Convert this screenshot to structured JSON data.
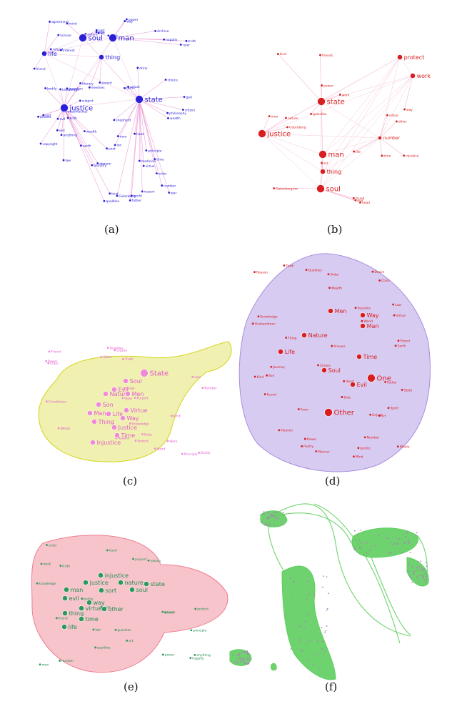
{
  "figure": {
    "caption": "Figure: semantic networks of the word co-occurrence graph for The Republic (panels a–f)."
  },
  "panels": [
    {
      "id": "a",
      "label": "(a)",
      "edge_color": "#e98fd2",
      "node_color": "#2b20d8",
      "text_color": "#2b20d8",
      "hubs": [
        {
          "label": "soul",
          "size": "large"
        },
        {
          "label": "man",
          "size": "large"
        },
        {
          "label": "life",
          "size": "medium"
        },
        {
          "label": "thing",
          "size": "medium"
        },
        {
          "label": "justice",
          "size": "large"
        },
        {
          "label": "state",
          "size": "large"
        }
      ],
      "words": [
        "father",
        "ion",
        "choice",
        "beautify",
        "mind",
        "shepherd",
        "poet",
        "wealth",
        "philosophy",
        "god",
        "unjust",
        "world",
        "rest",
        "earth",
        "subject",
        "ruler",
        "medicine",
        "enemies",
        "interest",
        "art",
        "principle",
        "knowledge",
        "friend",
        "bodily",
        "evil",
        "qualities",
        "nature",
        "time",
        "way",
        "men",
        "evil",
        "virtue",
        "sort",
        "truth",
        "reason",
        "kind",
        "hand",
        "power",
        "Thrasymachus",
        "number",
        "citizen",
        "guardian",
        "order",
        "drink",
        "wealth",
        "war",
        "work",
        "protect",
        "law",
        "term",
        "agreement",
        "literary",
        "Gutenberg",
        "Archive",
        "domain",
        "refund",
        "copyright",
        "license",
        "anything",
        "happily",
        "part",
        "birth",
        "parent"
      ]
    },
    {
      "id": "b",
      "label": "(b)",
      "edge_color": "#f0a4c8",
      "node_color": "#d81e1e",
      "text_color": "#d81e1e",
      "hubs": [
        {
          "label": "state",
          "size": "large"
        },
        {
          "label": "protect",
          "size": "medium"
        },
        {
          "label": "work",
          "size": "medium"
        },
        {
          "label": "justice",
          "size": "large"
        },
        {
          "label": "man",
          "size": "large"
        },
        {
          "label": "thing",
          "size": "medium"
        },
        {
          "label": "soul",
          "size": "large"
        },
        {
          "label": "number",
          "size": "small"
        }
      ],
      "words": [
        "found",
        "Gutenberg",
        "Gutenberg-tm",
        "work",
        "guardian",
        "power",
        "head",
        "other",
        "life",
        "injustice",
        "time",
        "nature",
        "friends",
        "art",
        "evil",
        "kind",
        "virtue",
        "way",
        "men"
      ]
    },
    {
      "id": "c",
      "label": "(c)",
      "edge_color": "#d4d41c",
      "node_color": "#f08ad8",
      "text_color": "#e25bd0",
      "hubs": [
        {
          "label": "State",
          "size": "large"
        },
        {
          "label": "Soul",
          "size": "medium"
        },
        {
          "label": "Evil",
          "size": "medium"
        },
        {
          "label": "Nature",
          "size": "medium"
        },
        {
          "label": "Men",
          "size": "medium"
        },
        {
          "label": "Son",
          "size": "medium"
        },
        {
          "label": "Man",
          "size": "medium"
        },
        {
          "label": "Life",
          "size": "medium"
        },
        {
          "label": "Way",
          "size": "medium"
        },
        {
          "label": "Thing",
          "size": "medium"
        },
        {
          "label": "Virtue",
          "size": "medium"
        },
        {
          "label": "Justice",
          "size": "medium"
        },
        {
          "label": "Time",
          "size": "medium"
        },
        {
          "label": "Injustice",
          "size": "medium"
        }
      ],
      "words": [
        "Hand",
        "Number",
        "View",
        "Work",
        "Protect",
        "Qualities",
        "Law",
        "Order",
        "Reason",
        "Bodily",
        "Friend",
        "Principle",
        "Truth",
        "Ruler",
        "Constitutes",
        "Citizen",
        "Class",
        "Purport",
        "Whole",
        "Kind",
        "Knowledge",
        "Other",
        "Power"
      ]
    },
    {
      "id": "d",
      "label": "(d)",
      "edge_color": "#a98ce0",
      "node_color": "#d81e1e",
      "text_color": "#d81e1e",
      "hubs": [
        {
          "label": "Men",
          "size": "medium"
        },
        {
          "label": "Way",
          "size": "medium"
        },
        {
          "label": "Man",
          "size": "medium"
        },
        {
          "label": "Nature",
          "size": "medium"
        },
        {
          "label": "Life",
          "size": "medium"
        },
        {
          "label": "Time",
          "size": "medium"
        },
        {
          "label": "Soul",
          "size": "medium"
        },
        {
          "label": "One",
          "size": "large"
        },
        {
          "label": "Evil",
          "size": "medium"
        },
        {
          "label": "Other",
          "size": "large"
        }
      ],
      "words": [
        "Justice",
        "Injustice",
        "Desire",
        "Earth",
        "World",
        "Form",
        "Son",
        "Knowledge",
        "Truth",
        "Virtue",
        "Thing",
        "Choice",
        "Wealth",
        "Number",
        "Qualities",
        "Mind",
        "Heaven",
        "Journey",
        "Reason",
        "Whole",
        "Law",
        "Manner",
        "Order",
        "Unjust",
        "Friend",
        "Father",
        "State",
        "Spirit",
        "Answer",
        "Found",
        "Head",
        "Side",
        "Kind",
        "Class",
        "Power",
        "Poetry",
        "Husbandman",
        "Art"
      ]
    },
    {
      "id": "e",
      "label": "(e)",
      "edge_color": "#ee7d8e",
      "node_color": "#2a9a5a",
      "text_color": "#238c51",
      "hubs": [
        {
          "label": "injustice",
          "size": "medium"
        },
        {
          "label": "justice",
          "size": "medium"
        },
        {
          "label": "nature",
          "size": "medium"
        },
        {
          "label": "man",
          "size": "medium"
        },
        {
          "label": "sort",
          "size": "medium"
        },
        {
          "label": "soul",
          "size": "medium"
        },
        {
          "label": "evil",
          "size": "medium"
        },
        {
          "label": "way",
          "size": "medium"
        },
        {
          "label": "virtue",
          "size": "medium"
        },
        {
          "label": "other",
          "size": "medium"
        },
        {
          "label": "thing",
          "size": "medium"
        },
        {
          "label": "time",
          "size": "medium"
        },
        {
          "label": "life",
          "size": "medium"
        },
        {
          "label": "state",
          "size": "medium"
        }
      ],
      "words": [
        "power",
        "hand",
        "friend",
        "number",
        "principle",
        "bodily",
        "qualities",
        "reason",
        "work",
        "protect",
        "guardian",
        "order",
        "purport",
        "happily",
        "govern",
        "anything",
        "ruler",
        "kind",
        "knowledge",
        "truth",
        "law",
        "art",
        "men"
      ]
    },
    {
      "id": "f",
      "label": "(f)",
      "edge_color": "#5ece5e",
      "node_color": "#b07ec0",
      "text_color": "#c85cc8",
      "hubs": [],
      "words": []
    }
  ]
}
